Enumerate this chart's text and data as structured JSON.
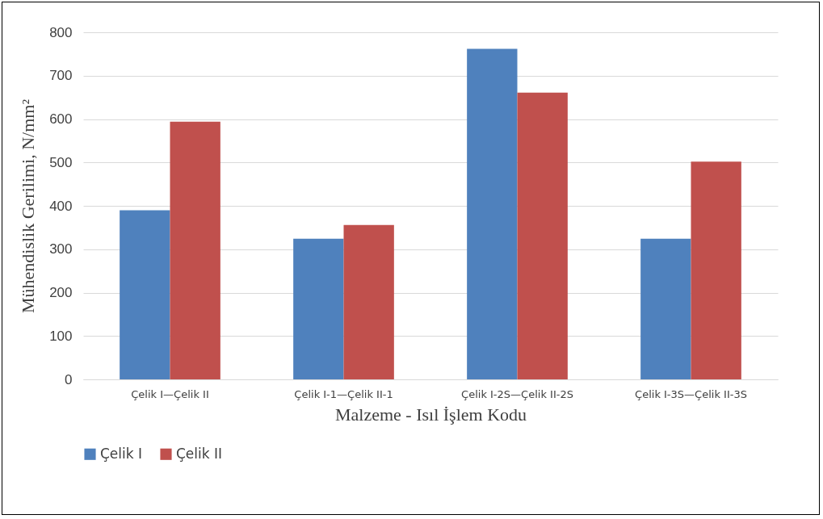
{
  "chart_data": {
    "type": "bar",
    "xlabel": "Malzeme - Isıl İşlem Kodu",
    "ylabel": "Mühendislik Gerilimi, N/mm²",
    "categories": [
      "Çelik I—Çelik II",
      "Çelik I-1—Çelik II-1",
      "Çelik I-2S—Çelik II-2S",
      "Çelik I-3S—Çelik II-3S"
    ],
    "series": [
      {
        "name": "Çelik I",
        "color": "#4f81bd",
        "values": [
          390,
          324,
          762,
          324
        ]
      },
      {
        "name": "Çelik II",
        "color": "#c0504d",
        "values": [
          594,
          356,
          661,
          502
        ]
      }
    ],
    "ylim": [
      0,
      800
    ],
    "yticks": [
      0,
      100,
      200,
      300,
      400,
      500,
      600,
      700,
      800
    ],
    "grid": "y",
    "legend": "bottom"
  }
}
